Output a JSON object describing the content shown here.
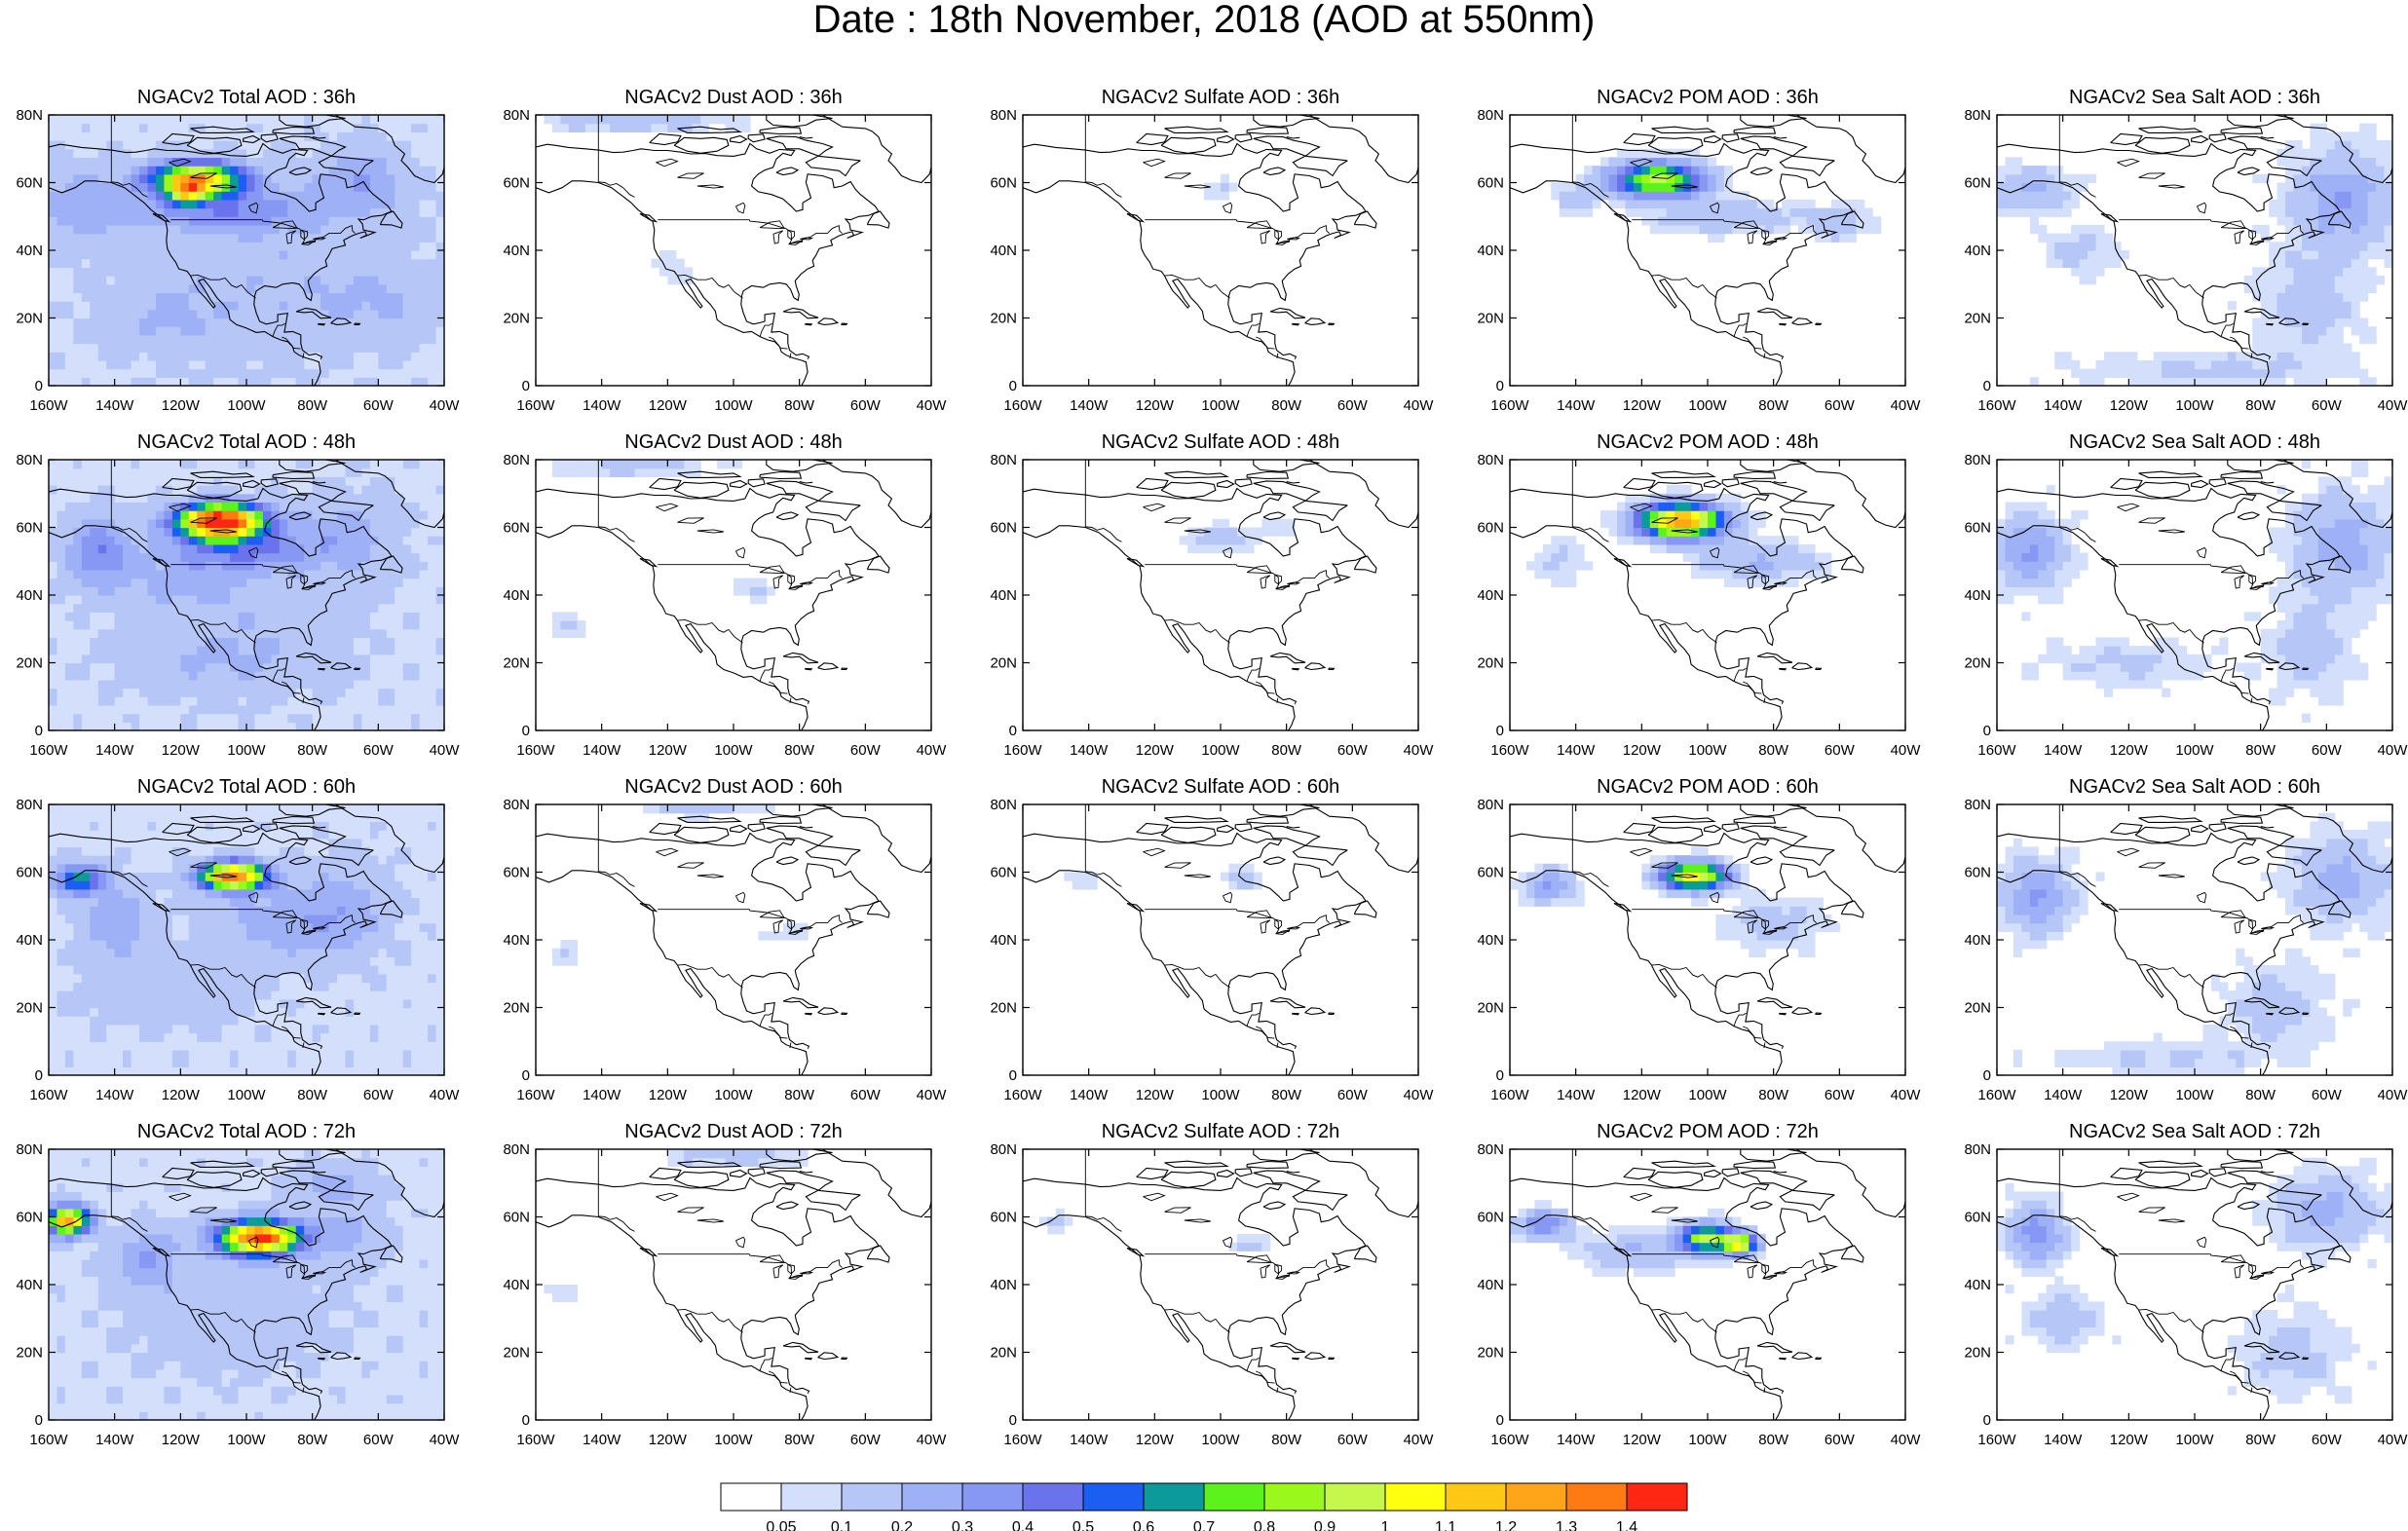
{
  "title": "Date : 18th November, 2018 (AOD at 550nm)",
  "panels": [
    [
      {
        "title": "NGACv2 Total AOD : 36h",
        "field": "total"
      },
      {
        "title": "NGACv2 Dust AOD : 36h",
        "field": "dust"
      },
      {
        "title": "NGACv2 Sulfate AOD : 36h",
        "field": "sulfate"
      },
      {
        "title": "NGACv2 POM AOD : 36h",
        "field": "pom"
      },
      {
        "title": "NGACv2 Sea Salt AOD : 36h",
        "field": "seasalt"
      }
    ],
    [
      {
        "title": "NGACv2 Total AOD : 48h",
        "field": "total"
      },
      {
        "title": "NGACv2 Dust AOD : 48h",
        "field": "dust"
      },
      {
        "title": "NGACv2 Sulfate AOD : 48h",
        "field": "sulfate"
      },
      {
        "title": "NGACv2 POM AOD : 48h",
        "field": "pom"
      },
      {
        "title": "NGACv2 Sea Salt AOD : 48h",
        "field": "seasalt"
      }
    ],
    [
      {
        "title": "NGACv2 Total AOD : 60h",
        "field": "total"
      },
      {
        "title": "NGACv2 Dust AOD : 60h",
        "field": "dust"
      },
      {
        "title": "NGACv2 Sulfate AOD : 60h",
        "field": "sulfate"
      },
      {
        "title": "NGACv2 POM AOD : 60h",
        "field": "pom"
      },
      {
        "title": "NGACv2 Sea Salt AOD : 60h",
        "field": "seasalt"
      }
    ],
    [
      {
        "title": "NGACv2 Total AOD : 72h",
        "field": "total"
      },
      {
        "title": "NGACv2 Dust AOD : 72h",
        "field": "dust"
      },
      {
        "title": "NGACv2 Sulfate AOD : 72h",
        "field": "sulfate"
      },
      {
        "title": "NGACv2 POM AOD : 72h",
        "field": "pom"
      },
      {
        "title": "NGACv2 Sea Salt  AOD : 72h",
        "field": "seasalt"
      }
    ]
  ],
  "axes": {
    "lon_ticks": [
      "160W",
      "140W",
      "120W",
      "100W",
      "80W",
      "60W",
      "40W"
    ],
    "lat_ticks": [
      "80N",
      "60N",
      "40N",
      "20N",
      "0"
    ],
    "lon_range": [
      -160,
      -40
    ],
    "lat_range": [
      0,
      80
    ]
  },
  "colorbar": {
    "colors": [
      "#ffffff",
      "#d3dffb",
      "#b5c6f7",
      "#9fb1f6",
      "#8797f4",
      "#6b73ec",
      "#1b5ef2",
      "#0c9a9a",
      "#5bf31b",
      "#9af81c",
      "#c5f84b",
      "#ffff10",
      "#ffc814",
      "#ffa51a",
      "#ff7a10",
      "#ff2612"
    ],
    "labels": [
      "0.05",
      "0.1",
      "0.2",
      "0.3",
      "0.4",
      "0.5",
      "0.6",
      "0.7",
      "0.8",
      "0.9",
      "1",
      "1.1",
      "1.2",
      "1.3",
      "1.4"
    ]
  }
}
